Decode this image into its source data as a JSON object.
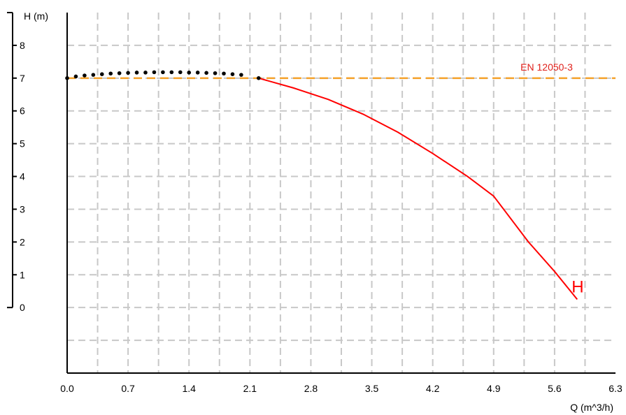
{
  "chart_data": {
    "type": "line",
    "xlabel": "Q (m^3/h)",
    "ylabel": "H (m)",
    "xlim": [
      0,
      6.3
    ],
    "ylim": [
      -2,
      9
    ],
    "x_ticks": [
      "0.0",
      "0.7",
      "1.4",
      "2.1",
      "2.8",
      "3.5",
      "4.2",
      "4.9",
      "5.6",
      "6.3"
    ],
    "y_ticks": [
      "0",
      "1",
      "2",
      "3",
      "4",
      "5",
      "6",
      "7",
      "8"
    ],
    "grid": true,
    "series": [
      {
        "name": "H",
        "style": "solid",
        "color": "#ff0000",
        "x": [
          2.2,
          2.6,
          3.0,
          3.4,
          3.8,
          4.2,
          4.6,
          4.9,
          5.3,
          5.6,
          5.86
        ],
        "y": [
          7.0,
          6.7,
          6.35,
          5.9,
          5.35,
          4.7,
          4.0,
          3.4,
          2.0,
          1.1,
          0.25
        ]
      },
      {
        "name": "",
        "style": "dotted",
        "color": "#000000",
        "x": [
          0.0,
          0.1,
          0.2,
          0.3,
          0.4,
          0.5,
          0.6,
          0.7,
          0.8,
          0.9,
          1.0,
          1.1,
          1.2,
          1.3,
          1.4,
          1.5,
          1.6,
          1.7,
          1.8,
          1.9,
          2.0,
          2.2
        ],
        "y": [
          7.0,
          7.05,
          7.08,
          7.1,
          7.12,
          7.14,
          7.15,
          7.16,
          7.17,
          7.17,
          7.18,
          7.18,
          7.18,
          7.18,
          7.17,
          7.17,
          7.16,
          7.15,
          7.14,
          7.12,
          7.1,
          7.0
        ]
      }
    ],
    "reference_line": {
      "label": "EN 12050-3",
      "y": 7.0,
      "color": "#f5a12a"
    },
    "series_label": {
      "text": "H",
      "color": "#ff0000"
    }
  }
}
